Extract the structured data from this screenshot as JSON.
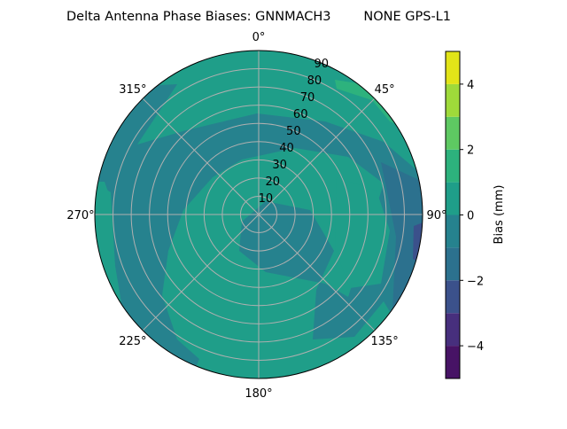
{
  "chart_data": {
    "type": "heatmap",
    "subtype": "polar-contour",
    "title": "Delta Antenna Phase Biases: GNNMACH3        NONE GPS-L1",
    "theta_ticks": [
      "0°",
      "45°",
      "90°",
      "135°",
      "180°",
      "225°",
      "270°",
      "315°"
    ],
    "theta_direction": "clockwise",
    "theta_zero": "top",
    "r_ticks": [
      "10",
      "20",
      "30",
      "40",
      "50",
      "60",
      "70",
      "80",
      "90"
    ],
    "r_range": [
      0,
      90
    ],
    "grid": true,
    "colorbar": {
      "label": "Bias (mm)",
      "range": [
        -5,
        5
      ],
      "levels": [
        -5,
        -4,
        -3,
        -2,
        -1,
        0,
        1,
        2,
        3,
        4,
        5
      ],
      "ticks": [
        "−4",
        "−2",
        "0",
        "2",
        "4"
      ],
      "tick_values": [
        -4,
        -2,
        0,
        2,
        4
      ],
      "colormap": "viridis",
      "colors": [
        "#471365",
        "#472f7d",
        "#3b518b",
        "#2c718e",
        "#26828e",
        "#1f9e89",
        "#2db27d",
        "#5ec962",
        "#9fda3a",
        "#e2e418"
      ]
    }
  }
}
